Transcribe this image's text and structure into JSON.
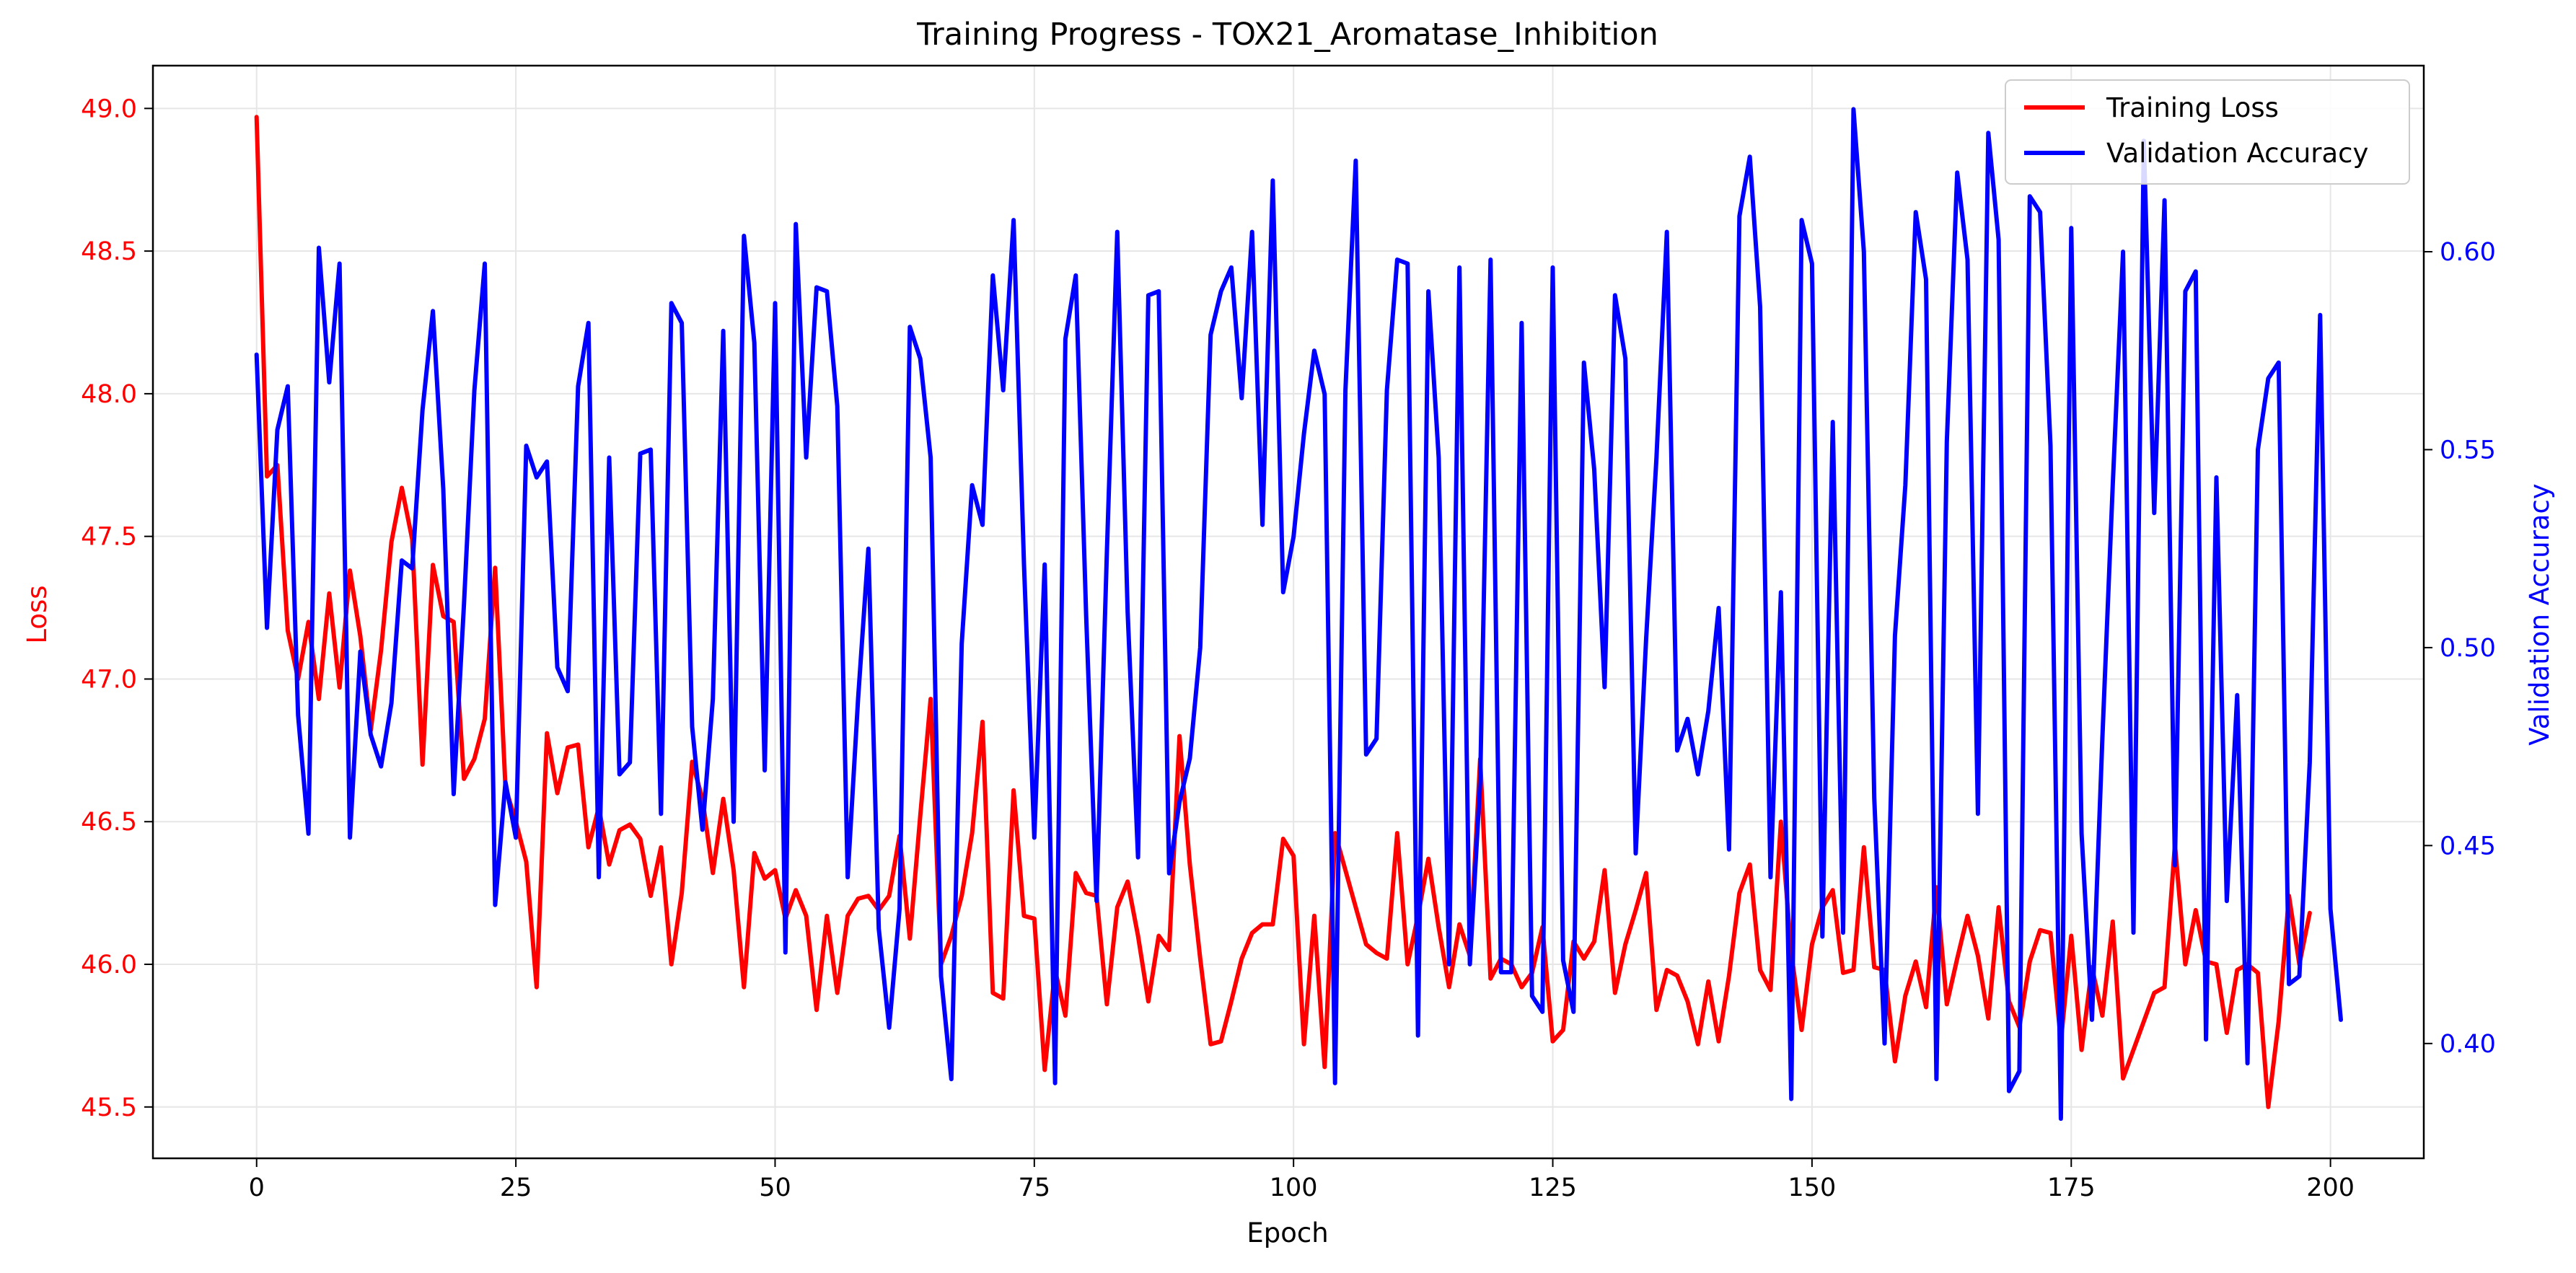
{
  "chart_data": {
    "type": "line",
    "title": "Training Progress - TOX21_Aromatase_Inhibition",
    "xlabel": "Epoch",
    "ylabel_left": "Loss",
    "ylabel_right": "Validation Accuracy",
    "xlim": [
      -10,
      209
    ],
    "ylim_left": [
      45.32,
      49.15
    ],
    "ylim_right": [
      0.371,
      0.647
    ],
    "x_ticks": [
      "0",
      "25",
      "50",
      "75",
      "100",
      "125",
      "150",
      "175",
      "200"
    ],
    "y_ticks_left": [
      "45.5",
      "46.0",
      "46.5",
      "47.0",
      "47.5",
      "48.0",
      "48.5",
      "49.0"
    ],
    "y_ticks_right": [
      "0.40",
      "0.45",
      "0.50",
      "0.55",
      "0.60"
    ],
    "grid": true,
    "legend_position": "top-right",
    "colors": {
      "loss": "#ff0000",
      "accuracy": "#0000ff"
    },
    "series": [
      {
        "name": "Training Loss",
        "axis": "left",
        "color": "#ff0000",
        "values": [
          48.97,
          47.71,
          47.75,
          47.17,
          47.0,
          47.2,
          46.93,
          47.3,
          46.97,
          47.38,
          47.15,
          46.82,
          47.1,
          47.48,
          47.67,
          47.49,
          46.7,
          47.4,
          47.22,
          47.2,
          46.65,
          46.72,
          46.86,
          47.39,
          46.62,
          46.5,
          46.36,
          45.92,
          46.81,
          46.6,
          46.76,
          46.77,
          46.41,
          46.55,
          46.35,
          46.47,
          46.49,
          46.44,
          46.24,
          46.41,
          46.0,
          46.25,
          46.71,
          46.58,
          46.32,
          46.58,
          46.33,
          45.92,
          46.39,
          46.3,
          46.33,
          46.16,
          46.26,
          46.17,
          45.84,
          46.17,
          45.9,
          46.17,
          46.23,
          46.24,
          46.19,
          46.24,
          46.45,
          46.09,
          46.52,
          46.93,
          46.0,
          46.1,
          46.24,
          46.46,
          46.85,
          45.9,
          45.88,
          46.61,
          46.17,
          46.16,
          45.63,
          45.98,
          45.82,
          46.32,
          46.25,
          46.24,
          45.86,
          46.2,
          46.29,
          46.1,
          45.87,
          46.1,
          46.05,
          46.8,
          46.35,
          46.02,
          45.72,
          45.73,
          45.87,
          46.02,
          46.11,
          46.14,
          46.14,
          46.44,
          46.38,
          45.72,
          46.17,
          45.64,
          46.46,
          46.33,
          46.2,
          46.07,
          46.04,
          46.02,
          46.46,
          46.0,
          46.17,
          46.37,
          46.13,
          45.92,
          46.14,
          46.03,
          46.72,
          45.95,
          46.02,
          46.0,
          45.92,
          45.97,
          46.13,
          45.73,
          45.77,
          46.08,
          46.02,
          46.08,
          46.33,
          45.9,
          46.07,
          46.19,
          46.32,
          45.84,
          45.98,
          45.96,
          45.87,
          45.72,
          45.94,
          45.73,
          45.96,
          46.25,
          46.35,
          45.98,
          45.91,
          46.5,
          46.04,
          45.77,
          46.07,
          46.2,
          46.26,
          45.97,
          45.98,
          46.41,
          45.99,
          45.98,
          45.66,
          45.89,
          46.01,
          45.85,
          46.27,
          45.86,
          46.02,
          46.17,
          46.03,
          45.81,
          46.2,
          45.87,
          45.78,
          46.01,
          46.12,
          46.11,
          45.73,
          46.1,
          45.7,
          45.99,
          45.82,
          46.15,
          45.6,
          45.7,
          45.8,
          45.9,
          45.92,
          46.42,
          46.0,
          46.19,
          46.01,
          46.0,
          45.76,
          45.98,
          46.0,
          45.97,
          45.5,
          45.8,
          46.24,
          46.0,
          46.18
        ]
      },
      {
        "name": "Validation Accuracy",
        "axis": "right",
        "color": "#0000ff",
        "values": [
          0.574,
          0.505,
          0.555,
          0.566,
          0.483,
          0.453,
          0.601,
          0.567,
          0.597,
          0.452,
          0.499,
          0.478,
          0.47,
          0.486,
          0.522,
          0.52,
          0.56,
          0.585,
          0.54,
          0.463,
          0.511,
          0.565,
          0.597,
          0.435,
          0.466,
          0.452,
          0.551,
          0.543,
          0.547,
          0.495,
          0.489,
          0.566,
          0.582,
          0.442,
          0.548,
          0.468,
          0.471,
          0.549,
          0.55,
          0.458,
          0.587,
          0.582,
          0.48,
          0.454,
          0.487,
          0.58,
          0.456,
          0.604,
          0.577,
          0.469,
          0.587,
          0.423,
          0.607,
          0.548,
          0.591,
          0.59,
          0.561,
          0.442,
          0.487,
          0.525,
          0.429,
          0.404,
          0.434,
          0.581,
          0.573,
          0.548,
          0.417,
          0.391,
          0.501,
          0.541,
          0.531,
          0.594,
          0.565,
          0.608,
          0.521,
          0.452,
          0.521,
          0.39,
          0.578,
          0.594,
          0.508,
          0.436,
          0.524,
          0.605,
          0.509,
          0.447,
          0.589,
          0.59,
          0.443,
          0.461,
          0.472,
          0.5,
          0.579,
          0.59,
          0.596,
          0.563,
          0.605,
          0.531,
          0.618,
          0.514,
          0.528,
          0.554,
          0.575,
          0.564,
          0.39,
          0.565,
          0.623,
          0.473,
          0.477,
          0.565,
          0.598,
          0.597,
          0.402,
          0.59,
          0.548,
          0.42,
          0.596,
          0.42,
          0.466,
          0.598,
          0.418,
          0.418,
          0.582,
          0.412,
          0.408,
          0.596,
          0.421,
          0.408,
          0.572,
          0.545,
          0.49,
          0.589,
          0.573,
          0.448,
          0.502,
          0.548,
          0.605,
          0.474,
          0.482,
          0.468,
          0.484,
          0.51,
          0.449,
          0.609,
          0.624,
          0.586,
          0.442,
          0.514,
          0.386,
          0.608,
          0.597,
          0.427,
          0.557,
          0.428,
          0.636,
          0.6,
          0.462,
          0.4,
          0.503,
          0.541,
          0.61,
          0.593,
          0.391,
          0.552,
          0.62,
          0.598,
          0.458,
          0.63,
          0.603,
          0.388,
          0.393,
          0.614,
          0.61,
          0.551,
          0.381,
          0.606,
          0.453,
          0.406,
          0.477,
          0.541,
          0.6,
          0.428,
          0.628,
          0.534,
          0.613,
          0.445,
          0.59,
          0.595,
          0.401,
          0.543,
          0.436,
          0.488,
          0.395,
          0.55,
          0.568,
          0.572,
          0.415,
          0.417,
          0.471,
          0.584,
          0.434,
          0.406
        ]
      }
    ]
  }
}
